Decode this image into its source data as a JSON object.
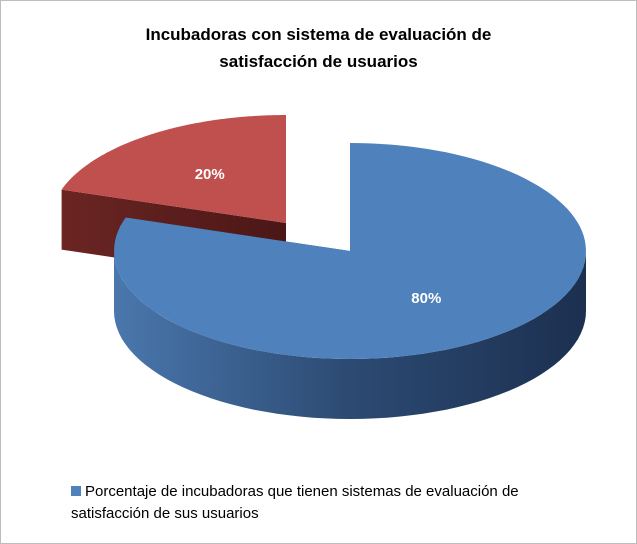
{
  "chart_data": {
    "type": "pie",
    "title": "Incubadoras con sistema de evaluación de satisfacción de usuarios",
    "categories": [
      "Porcentaje de incubadoras que tienen sistemas de evaluación de satisfacción de sus usuarios",
      null
    ],
    "values": [
      80,
      20
    ],
    "value_labels": [
      "80%",
      "20%"
    ],
    "colors": [
      "#4f81bd",
      "#c0504d"
    ],
    "legend": "bottom"
  }
}
